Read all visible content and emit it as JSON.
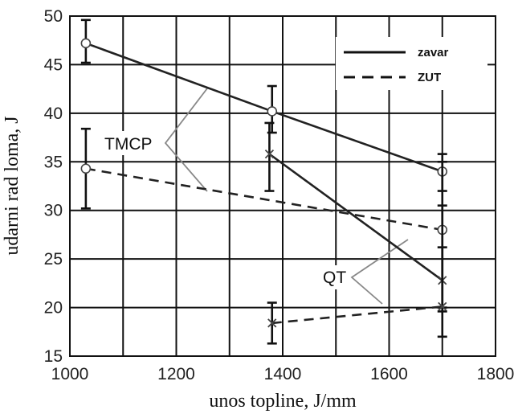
{
  "chart_data": {
    "type": "line",
    "xlabel": "unos topline, J/mm",
    "ylabel": "udarni rad loma, J",
    "xlim": [
      1000,
      1800
    ],
    "ylim": [
      15,
      50
    ],
    "x_ticks": [
      1000,
      1200,
      1400,
      1600,
      1800
    ],
    "y_ticks": [
      15,
      20,
      25,
      30,
      35,
      40,
      45,
      50
    ],
    "grid": true,
    "legend_position": "top-right",
    "legend": [
      {
        "label": "zavar",
        "style": "solid"
      },
      {
        "label": "ZUT",
        "style": "dashed"
      }
    ],
    "series": [
      {
        "group": "TMCP",
        "kind": "zavar",
        "style": "solid",
        "marker": "circle",
        "x": [
          1030,
          1380,
          1700
        ],
        "y": [
          47.2,
          40.2,
          34.0
        ],
        "err_low": [
          45.2,
          38.0,
          32.0
        ],
        "err_high": [
          49.6,
          42.8,
          35.8
        ]
      },
      {
        "group": "TMCP",
        "kind": "ZUT",
        "style": "dashed",
        "marker": "circle",
        "x": [
          1030,
          1700
        ],
        "y": [
          34.3,
          28.0
        ],
        "err_low": [
          30.2,
          20.0
        ],
        "err_high": [
          38.4,
          35.0
        ]
      },
      {
        "group": "QT",
        "kind": "zavar",
        "style": "solid",
        "marker": "x",
        "x": [
          1375,
          1700
        ],
        "y": [
          35.8,
          22.8
        ],
        "err_low": [
          32.0,
          19.6
        ],
        "err_high": [
          39.0,
          26.2
        ]
      },
      {
        "group": "QT",
        "kind": "ZUT",
        "style": "dashed",
        "marker": "x",
        "x": [
          1380,
          1700
        ],
        "y": [
          18.4,
          20.1
        ],
        "err_low": [
          16.3,
          17.0
        ],
        "err_high": [
          20.5,
          30.5
        ]
      }
    ],
    "annotations": [
      {
        "text": "TMCP",
        "pointer_groups": "TMCP"
      },
      {
        "text": "QT",
        "pointer_groups": "QT"
      }
    ]
  }
}
